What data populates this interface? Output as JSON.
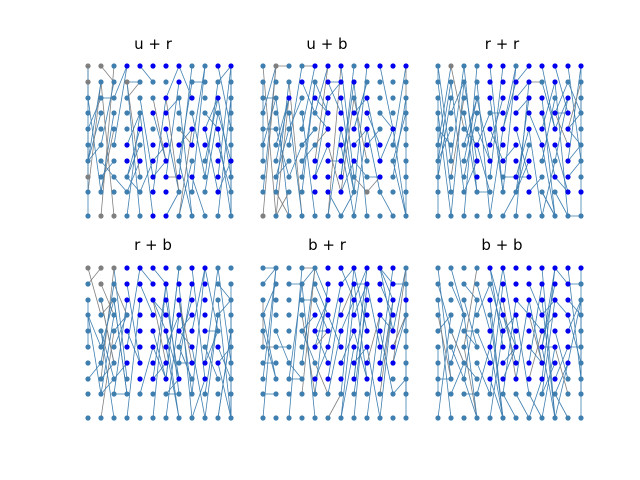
{
  "colors": {
    "node_blue": "#0000ee",
    "node_steel": "#3f7fb0",
    "node_gray": "#7f7f7f",
    "edge_steel": "#3f7fb0",
    "edge_gray": "#808080"
  },
  "panels": [
    {
      "title": "u + r",
      "color_rows": [
        "GGSBBBBBSSBB",
        "GSSGSSSBSSSS",
        "SSSSSSBSBSBS",
        "SSSSSBBSSSSS",
        "SSSSBSBSBBBS",
        "SSSBSBBBBBBS",
        "SSSBBBBSSSBB",
        "GSSSSBBBBSBS",
        "SSSSSBBSSSBS",
        "SGGSSBBSSSSS"
      ]
    },
    {
      "title": "u + b",
      "color_rows": [
        "SGSSBBBSBBBB",
        "SSSBSBBBSSSS",
        "SSBSBBBSBSSS",
        "SSSSSBBBBSSS",
        "SSSSSBBBBSBS",
        "SSSSSBBBBBSS",
        "SSSSBBBBSBSS",
        "SSSSBBBSSBSS",
        "SSSSBBBSGSSS",
        "GSSSSSSSSSSS"
      ]
    },
    {
      "title": "r + r",
      "color_rows": [
        "SGSSBBSBBBBB",
        "SSSSBBBBSBSS",
        "SSSSBBBBBSBS",
        "SSSSSBBBBBBS",
        "SSSSBBBBBBBS",
        "SSSBBBBSBBBS",
        "SSSBBBBBSSBS",
        "SSSBSSBBSBBS",
        "SSSSSSSBSSBB",
        "SSSSSSSSSSSS"
      ]
    },
    {
      "title": "r + b",
      "color_rows": [
        "GGGBBBBSBBSS",
        "SGSBBBBBBBSS",
        "SSSBBBBBBBSS",
        "SSSSBBBBBBSS",
        "SSSBBBBBBBSS",
        "SSSBBBBSBSBS",
        "SSSBBBBSBBBS",
        "SSSSBBBBSBSS",
        "SSSSSSSSSSSS",
        "SSSSSSSSSSSS"
      ]
    },
    {
      "title": "b + r",
      "color_rows": [
        "SSSSSBBBBBBS",
        "SSSSSBBBBBBS",
        "SSSSSBBBBBBB",
        "SSSSBBBBBBBS",
        "SSSSBBBBBBBS",
        "SSSSBBBBBBBS",
        "SSSSSBBBBBBS",
        "SSSSBBBBBBSS",
        "SSSSSSSSSSSS",
        "SSSSSSSSSSSS"
      ]
    },
    {
      "title": "b + b",
      "color_rows": [
        "SSSSBBBBBBBB",
        "SSSSSBBBBBBS",
        "SSSSBBBBBBBS",
        "SSSSSBBBBBBS",
        "SSSSBBBBBBBS",
        "SSSSBBBBBBBS",
        "SSSSBBBBBBBS",
        "SSSSBBBBBBSS",
        "SSSSSSSSSSSS",
        "SSSSSSSSSSSS"
      ]
    }
  ]
}
